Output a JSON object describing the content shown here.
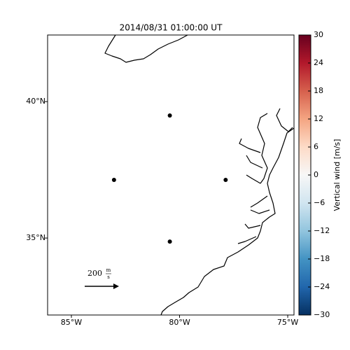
{
  "chart_data": {
    "type": "scatter",
    "title": "2014/08/31 01:00:00 UT",
    "x": [
      -80.45,
      -83.03,
      -77.87,
      -80.45
    ],
    "y": [
      39.49,
      37.13,
      37.13,
      34.87
    ],
    "color": "#000000",
    "xlim": [
      -86.1,
      -74.71
    ],
    "ylim": [
      32.18,
      42.44
    ],
    "xticks": [
      {
        "value": -85,
        "label": "85°W"
      },
      {
        "value": -80,
        "label": "80°W"
      },
      {
        "value": -75,
        "label": "75°W"
      }
    ],
    "yticks": [
      {
        "value": 35,
        "label": "35°N"
      },
      {
        "value": 40,
        "label": "40°N"
      }
    ],
    "colorbar": {
      "label": "Vertical wind [m/s]",
      "clim": [
        -30,
        30
      ],
      "ticks": [
        {
          "value": -30,
          "label": "−30"
        },
        {
          "value": -24,
          "label": "−24"
        },
        {
          "value": -18,
          "label": "−18"
        },
        {
          "value": -12,
          "label": "−12"
        },
        {
          "value": -6,
          "label": "−6"
        },
        0,
        6,
        12,
        18,
        24,
        30
      ]
    },
    "quiver_key": {
      "value": 200,
      "unit_numerator": "m",
      "unit_denominator": "s"
    }
  }
}
